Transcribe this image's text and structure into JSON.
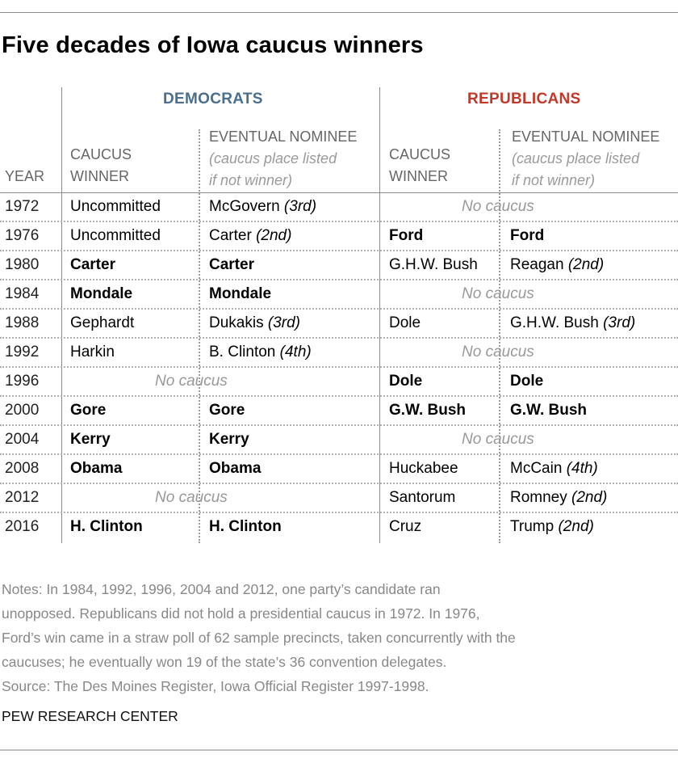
{
  "title": "Five decades of Iowa caucus winners",
  "colors": {
    "democrats": "#4a6f8e",
    "republicans": "#c0392b",
    "no_caucus": "#999999",
    "notes": "#888888"
  },
  "headers": {
    "democrats": "DEMOCRATS",
    "republicans": "REPUBLICANS",
    "year": "YEAR",
    "caucus_winner_line1": "CAUCUS",
    "caucus_winner_line2": "WINNER",
    "nominee_line1": "EVENTUAL NOMINEE",
    "nominee_line2": "(caucus place listed",
    "nominee_line3": "if not winner)"
  },
  "no_caucus_label": "No caucus",
  "rows": [
    {
      "year": "1972",
      "dem": {
        "winner": "Uncommitted",
        "winner_bold": false,
        "nominee": "McGovern",
        "nominee_place": "(3rd)",
        "nominee_bold": false
      },
      "rep": {
        "no_caucus": true
      }
    },
    {
      "year": "1976",
      "dem": {
        "winner": "Uncommitted",
        "winner_bold": false,
        "nominee": "Carter",
        "nominee_place": "(2nd)",
        "nominee_bold": false
      },
      "rep": {
        "winner": "Ford",
        "winner_bold": true,
        "nominee": "Ford",
        "nominee_place": "",
        "nominee_bold": true
      }
    },
    {
      "year": "1980",
      "dem": {
        "winner": "Carter",
        "winner_bold": true,
        "nominee": "Carter",
        "nominee_place": "",
        "nominee_bold": true
      },
      "rep": {
        "winner": "G.H.W. Bush",
        "winner_bold": false,
        "nominee": "Reagan",
        "nominee_place": "(2nd)",
        "nominee_bold": false
      }
    },
    {
      "year": "1984",
      "dem": {
        "winner": "Mondale",
        "winner_bold": true,
        "nominee": "Mondale",
        "nominee_place": "",
        "nominee_bold": true
      },
      "rep": {
        "no_caucus": true
      }
    },
    {
      "year": "1988",
      "dem": {
        "winner": "Gephardt",
        "winner_bold": false,
        "nominee": "Dukakis",
        "nominee_place": "(3rd)",
        "nominee_bold": false
      },
      "rep": {
        "winner": "Dole",
        "winner_bold": false,
        "nominee": "G.H.W. Bush",
        "nominee_place": "(3rd)",
        "nominee_bold": false
      }
    },
    {
      "year": "1992",
      "dem": {
        "winner": "Harkin",
        "winner_bold": false,
        "nominee": "B. Clinton",
        "nominee_place": "(4th)",
        "nominee_bold": false
      },
      "rep": {
        "no_caucus": true
      }
    },
    {
      "year": "1996",
      "dem": {
        "no_caucus": true
      },
      "rep": {
        "winner": "Dole",
        "winner_bold": true,
        "nominee": "Dole",
        "nominee_place": "",
        "nominee_bold": true
      }
    },
    {
      "year": "2000",
      "dem": {
        "winner": "Gore",
        "winner_bold": true,
        "nominee": "Gore",
        "nominee_place": "",
        "nominee_bold": true
      },
      "rep": {
        "winner": "G.W. Bush",
        "winner_bold": true,
        "nominee": "G.W. Bush",
        "nominee_place": "",
        "nominee_bold": true
      }
    },
    {
      "year": "2004",
      "dem": {
        "winner": "Kerry",
        "winner_bold": true,
        "nominee": "Kerry",
        "nominee_place": "",
        "nominee_bold": true
      },
      "rep": {
        "no_caucus": true
      }
    },
    {
      "year": "2008",
      "dem": {
        "winner": "Obama",
        "winner_bold": true,
        "nominee": "Obama",
        "nominee_place": "",
        "nominee_bold": true
      },
      "rep": {
        "winner": "Huckabee",
        "winner_bold": false,
        "nominee": "McCain",
        "nominee_place": "(4th)",
        "nominee_bold": false
      }
    },
    {
      "year": "2012",
      "dem": {
        "no_caucus": true
      },
      "rep": {
        "winner": "Santorum",
        "winner_bold": false,
        "nominee": "Romney",
        "nominee_place": "(2nd)",
        "nominee_bold": false
      }
    },
    {
      "year": "2016",
      "dem": {
        "winner": "H. Clinton",
        "winner_bold": true,
        "nominee": "H. Clinton",
        "nominee_place": "",
        "nominee_bold": true
      },
      "rep": {
        "winner": "Cruz",
        "winner_bold": false,
        "nominee": "Trump",
        "nominee_place": "(2nd)",
        "nominee_bold": false
      }
    }
  ],
  "notes": [
    "Notes: In 1984, 1992, 1996, 2004 and 2012, one party’s candidate ran",
    "unopposed. Republicans did not hold a presidential caucus in 1972. In 1976,",
    "Ford’s win came in a straw poll of 62 sample precincts, taken concurrently with the",
    "caucuses; he eventually won 19 of the state’s 36 convention delegates.",
    "Source: The Des Moines Register, Iowa Official Register 1997-1998."
  ],
  "footer": "PEW RESEARCH CENTER",
  "chart_data": {
    "type": "table",
    "title": "Five decades of Iowa caucus winners",
    "columns": [
      "Year",
      "Democrats: Caucus winner",
      "Democrats: Eventual nominee",
      "Republicans: Caucus winner",
      "Republicans: Eventual nominee"
    ],
    "rows": [
      [
        "1972",
        "Uncommitted",
        "McGovern (3rd)",
        "No caucus",
        "No caucus"
      ],
      [
        "1976",
        "Uncommitted",
        "Carter (2nd)",
        "Ford",
        "Ford"
      ],
      [
        "1980",
        "Carter",
        "Carter",
        "G.H.W. Bush",
        "Reagan (2nd)"
      ],
      [
        "1984",
        "Mondale",
        "Mondale",
        "No caucus",
        "No caucus"
      ],
      [
        "1988",
        "Gephardt",
        "Dukakis (3rd)",
        "Dole",
        "G.H.W. Bush (3rd)"
      ],
      [
        "1992",
        "Harkin",
        "B. Clinton (4th)",
        "No caucus",
        "No caucus"
      ],
      [
        "1996",
        "No caucus",
        "No caucus",
        "Dole",
        "Dole"
      ],
      [
        "2000",
        "Gore",
        "Gore",
        "G.W. Bush",
        "G.W. Bush"
      ],
      [
        "2004",
        "Kerry",
        "Kerry",
        "No caucus",
        "No caucus"
      ],
      [
        "2008",
        "Obama",
        "Obama",
        "Huckabee",
        "McCain (4th)"
      ],
      [
        "2012",
        "No caucus",
        "No caucus",
        "Santorum",
        "Romney (2nd)"
      ],
      [
        "2016",
        "H. Clinton",
        "H. Clinton",
        "Cruz",
        "Trump (2nd)"
      ]
    ]
  }
}
